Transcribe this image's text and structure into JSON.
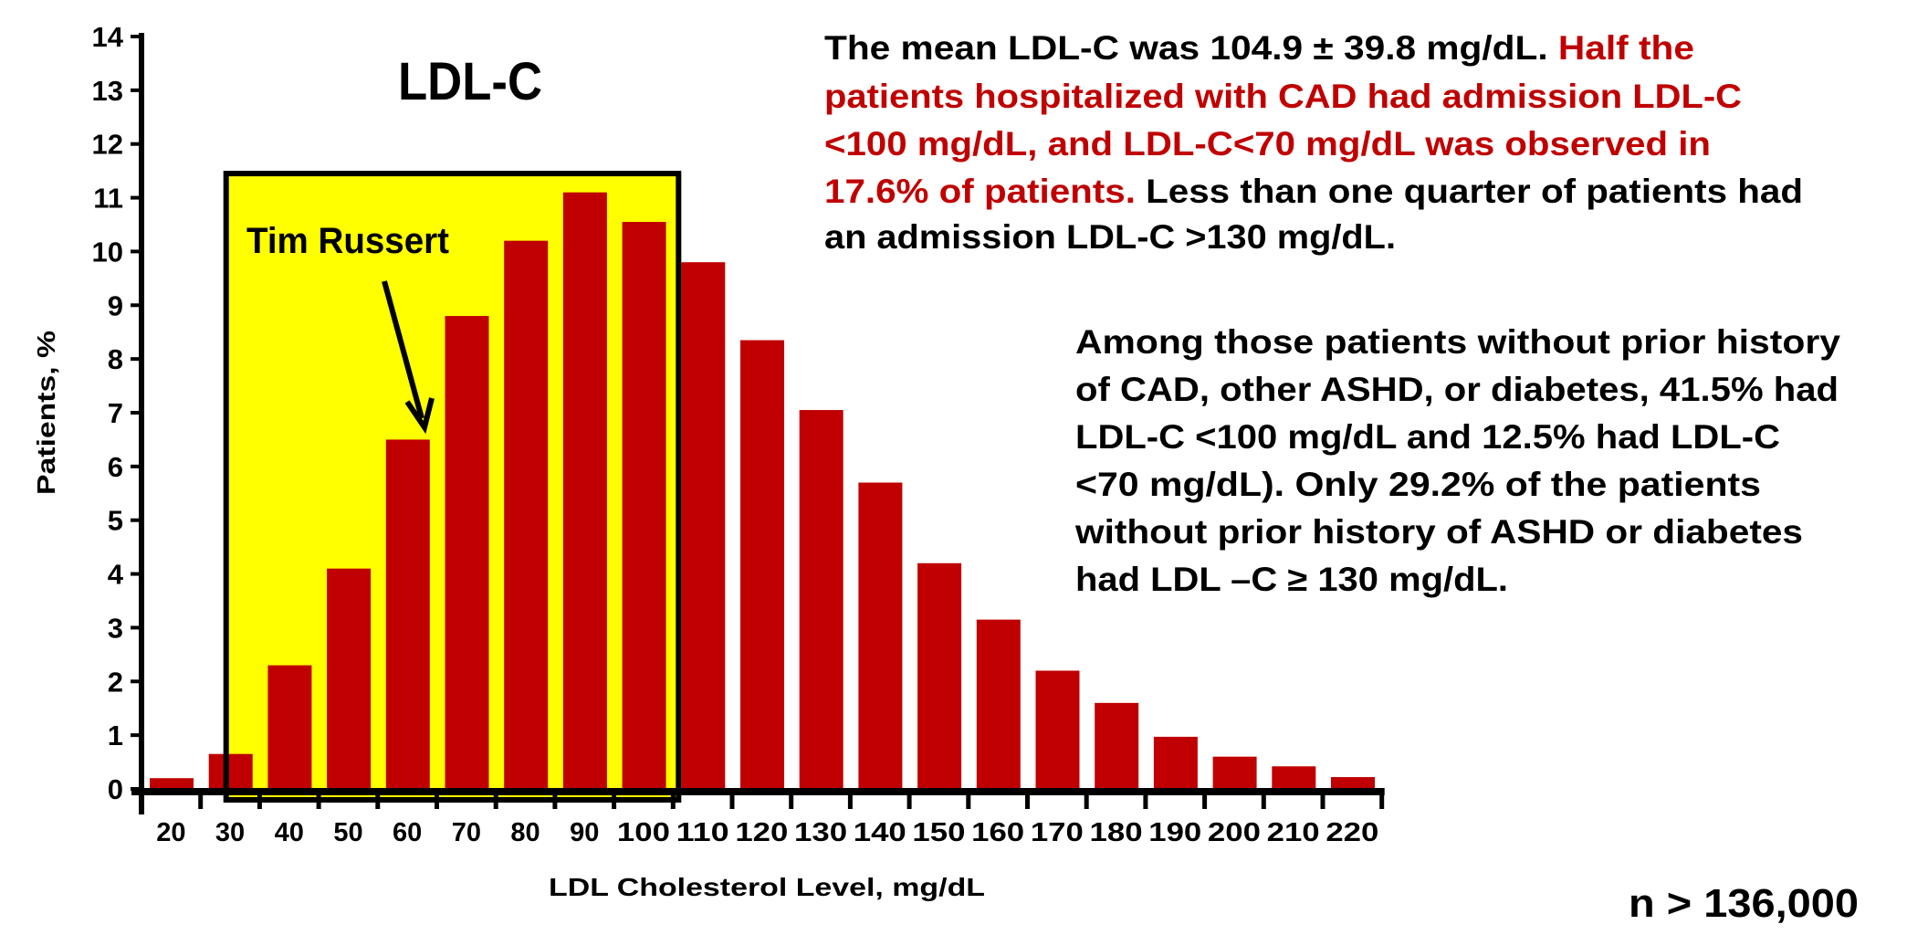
{
  "chart_data": {
    "type": "bar",
    "title": "LDL-C",
    "xlabel": "LDL Cholesterol Level, mg/dL",
    "ylabel": "Patients, %",
    "ylim": [
      0,
      14
    ],
    "yticks": [
      "0",
      "1",
      "2",
      "3",
      "4",
      "5",
      "6",
      "7",
      "8",
      "9",
      "10",
      "11",
      "12",
      "13",
      "14"
    ],
    "categories": [
      "20",
      "30",
      "40",
      "50",
      "60",
      "70",
      "80",
      "90",
      "100",
      "110",
      "120",
      "130",
      "140",
      "150",
      "160",
      "170",
      "180",
      "190",
      "200",
      "210",
      "220"
    ],
    "values": [
      0.2,
      0.65,
      2.3,
      4.1,
      6.5,
      8.8,
      10.2,
      11.1,
      10.55,
      9.8,
      8.35,
      7.05,
      5.7,
      4.2,
      3.15,
      2.2,
      1.6,
      0.97,
      0.6,
      0.42,
      0.22
    ],
    "bar_color": "#c00000",
    "highlight": {
      "from": "30",
      "to": "100",
      "color": "#ffff00",
      "top": 11.45
    },
    "grid": false,
    "annotation": {
      "label": "Tim Russert",
      "points_to": "60"
    }
  },
  "text_blocks": {
    "summary": [
      [
        {
          "t": "The mean LDL-C was 104.9 ± 39.8 mg/dL. ",
          "c": "#000000"
        },
        {
          "t": "Half the",
          "c": "#c00000"
        }
      ],
      [
        {
          "t": "patients hospitalized with CAD had admission LDL-C",
          "c": "#c00000"
        }
      ],
      [
        {
          "t": "<100 mg/dL, and LDL-C<70 mg/dL was observed in",
          "c": "#c00000"
        }
      ],
      [
        {
          "t": "17.6% of patients. ",
          "c": "#c00000"
        },
        {
          "t": "Less than one quarter of patients had",
          "c": "#000000"
        }
      ],
      [
        {
          "t": "an admission LDL-C >130 mg/dL.",
          "c": "#000000"
        }
      ]
    ],
    "subgroup": [
      "Among those patients without prior history",
      "of CAD, other ASHD, or diabetes, 41.5% had",
      "LDL-C <100 mg/dL and 12.5% had LDL-C",
      "<70 mg/dL). Only 29.2% of the patients",
      "without prior history of ASHD or diabetes",
      "had LDL –C ≥ 130 mg/dL."
    ],
    "sample_size": "n > 136,000"
  }
}
